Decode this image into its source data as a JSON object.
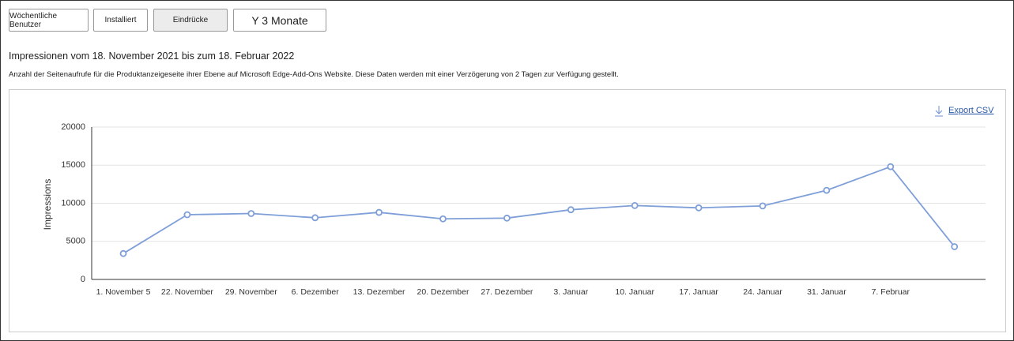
{
  "tabs": [
    "Wöchentliche Benutzer",
    "Installiert",
    "Eindrücke",
    "Y 3 Monate"
  ],
  "heading": "Impressionen vom 18. November 2021 bis zum 18. Februar 2022",
  "description": "Anzahl der Seitenaufrufe für die Produktanzeigeseite ihrer Ebene auf Microsoft Edge-Add-Ons Website. Diese Daten werden mit einer Verzögerung von 2 Tagen zur Verfügung gestellt.",
  "export": "Export CSV",
  "chart_data": {
    "type": "line",
    "ylabel": "Impressions",
    "categories": [
      "1. November 5",
      "22. November",
      "29. November",
      "6. Dezember",
      "13. Dezember",
      "20. Dezember",
      "27. Dezember",
      "3. Januar",
      "10. Januar",
      "17. Januar",
      "24. Januar",
      "31. Januar",
      "7. Februar",
      null
    ],
    "values": [
      3400,
      8500,
      8650,
      8100,
      8800,
      7950,
      8050,
      9150,
      9700,
      9400,
      9650,
      11700,
      14800,
      4300
    ],
    "color": "#7f9fd8",
    "ylim": [
      0,
      20000
    ],
    "yticks": [
      0,
      5000,
      10000,
      15000,
      20000
    ],
    "grid": true
  }
}
